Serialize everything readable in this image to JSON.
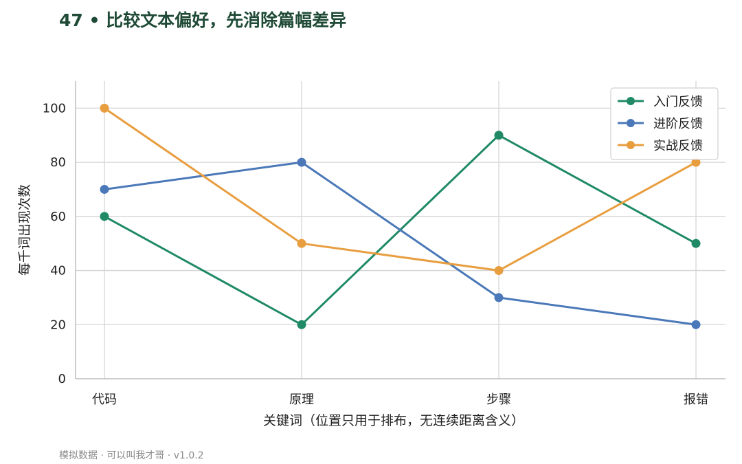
{
  "header": {
    "title": "47 • 比较文本偏好，先消除篇幅差异"
  },
  "footer": {
    "note": "模拟数据 · 可以叫我才哥 · v1.0.2"
  },
  "chart_data": {
    "type": "line",
    "title": "47 • 比较文本偏好，先消除篇幅差异",
    "xlabel": "关键词（位置只用于排布，无连续距离含义）",
    "ylabel": "每千词出现次数",
    "categories": [
      "代码",
      "原理",
      "步骤",
      "报错"
    ],
    "ylim": [
      0,
      110
    ],
    "yticks": [
      0,
      20,
      40,
      60,
      80,
      100
    ],
    "grid": true,
    "legend_position": "top-right",
    "series": [
      {
        "name": "入门反馈",
        "color": "#1f8a65",
        "values": [
          60,
          20,
          90,
          50
        ]
      },
      {
        "name": "进阶反馈",
        "color": "#4a78b8",
        "values": [
          70,
          80,
          30,
          20
        ]
      },
      {
        "name": "实战反馈",
        "color": "#e89e3f",
        "values": [
          100,
          50,
          40,
          80
        ]
      }
    ]
  }
}
